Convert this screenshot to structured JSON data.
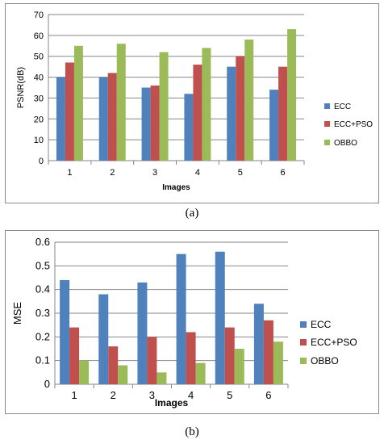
{
  "captions": {
    "a": "(a)",
    "b": "(b)"
  },
  "colors": {
    "ECC": "#4f81bd",
    "ECC+PSO": "#c0504d",
    "OBBO": "#9bbb59"
  },
  "chart_data": [
    {
      "type": "bar",
      "panel": "a",
      "categories": [
        "1",
        "2",
        "3",
        "4",
        "5",
        "6"
      ],
      "series": [
        {
          "name": "ECC",
          "values": [
            40,
            40,
            35,
            32,
            45,
            34
          ]
        },
        {
          "name": "ECC+PSO",
          "values": [
            47,
            42,
            36,
            46,
            50,
            45
          ]
        },
        {
          "name": "OBBO",
          "values": [
            55,
            56,
            52,
            54,
            58,
            63
          ]
        }
      ],
      "title": "",
      "xlabel": "Images",
      "ylabel": "PSNR(dB)",
      "ylim": [
        0,
        70
      ],
      "yticks": [
        "0",
        "10",
        "20",
        "30",
        "40",
        "50",
        "60",
        "70"
      ],
      "grid": true,
      "legend": "right"
    },
    {
      "type": "bar",
      "panel": "b",
      "categories": [
        "1",
        "2",
        "3",
        "4",
        "5",
        "6"
      ],
      "series": [
        {
          "name": "ECC",
          "values": [
            0.44,
            0.38,
            0.43,
            0.55,
            0.56,
            0.34
          ]
        },
        {
          "name": "ECC+PSO",
          "values": [
            0.24,
            0.16,
            0.2,
            0.22,
            0.24,
            0.27
          ]
        },
        {
          "name": "OBBO",
          "values": [
            0.1,
            0.08,
            0.05,
            0.09,
            0.15,
            0.18
          ]
        }
      ],
      "title": "",
      "xlabel": "Images",
      "ylabel": "MSE",
      "ylim": [
        0,
        0.6
      ],
      "yticks": [
        "0",
        "0.1",
        "0.2",
        "0.3",
        "0.4",
        "0.5",
        "0.6"
      ],
      "grid": true,
      "legend": "right"
    }
  ]
}
